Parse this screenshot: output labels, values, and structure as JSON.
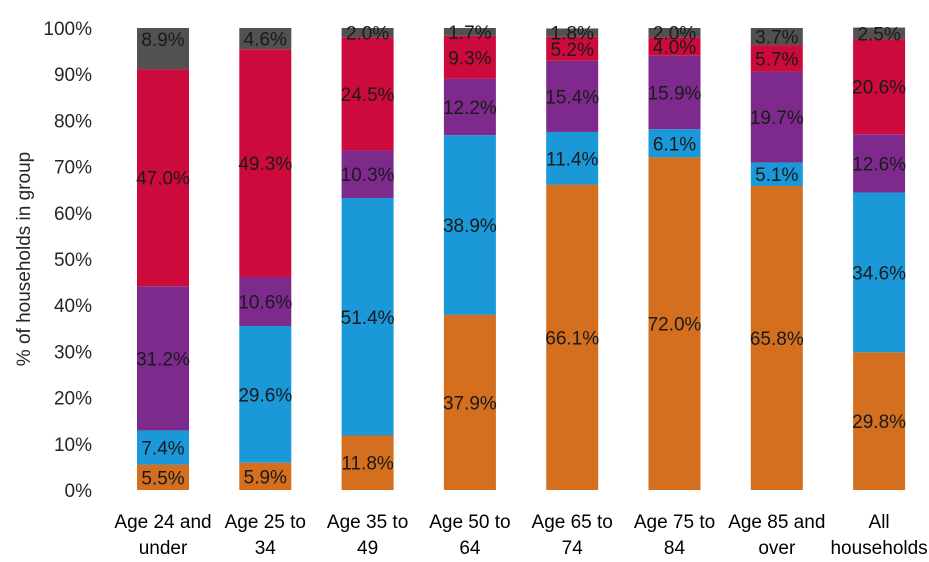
{
  "chart_data": {
    "type": "bar",
    "stacked": true,
    "ylabel": "% of households in group",
    "ylim": [
      0,
      100
    ],
    "yticks": [
      "0%",
      "10%",
      "20%",
      "30%",
      "40%",
      "50%",
      "60%",
      "70%",
      "80%",
      "90%",
      "100%"
    ],
    "categories": [
      [
        "Age 24 and",
        "under"
      ],
      [
        "Age 25 to",
        "34"
      ],
      [
        "Age 35 to",
        "49"
      ],
      [
        "Age 50 to",
        "64"
      ],
      [
        "Age 65 to",
        "74"
      ],
      [
        "Age 75 to",
        "84"
      ],
      [
        "Age 85 and",
        "over"
      ],
      [
        "All",
        "households"
      ]
    ],
    "series": [
      {
        "color": "#d36f1f",
        "values": [
          5.5,
          5.9,
          11.8,
          37.9,
          66.1,
          72.0,
          65.8,
          29.8
        ],
        "labels": [
          "5.5%",
          "5.9%",
          "11.8%",
          "37.9%",
          "66.1%",
          "72.0%",
          "65.8%",
          "29.8%"
        ]
      },
      {
        "color": "#1b98d8",
        "values": [
          7.4,
          29.6,
          51.4,
          38.9,
          11.4,
          6.1,
          5.1,
          34.6
        ],
        "labels": [
          "7.4%",
          "29.6%",
          "51.4%",
          "38.9%",
          "11.4%",
          "6.1%",
          "5.1%",
          "34.6%"
        ]
      },
      {
        "color": "#7d2a8c",
        "values": [
          31.2,
          10.6,
          10.3,
          12.2,
          15.4,
          15.9,
          19.7,
          12.6
        ],
        "labels": [
          "31.2%",
          "10.6%",
          "10.3%",
          "12.2%",
          "15.4%",
          "15.9%",
          "19.7%",
          "12.6%"
        ]
      },
      {
        "color": "#cc0a3c",
        "values": [
          47.0,
          49.3,
          24.5,
          9.3,
          5.2,
          4.0,
          5.7,
          20.6
        ],
        "labels": [
          "47.0%",
          "49.3%",
          "24.5%",
          "9.3%",
          "5.2%",
          "4.0%",
          "5.7%",
          "20.6%"
        ]
      },
      {
        "color": "#515151",
        "values": [
          8.9,
          4.6,
          2.0,
          1.7,
          1.8,
          2.0,
          3.7,
          2.5
        ],
        "labels": [
          "8.9%",
          "4.6%",
          "2.0%",
          "1.7%",
          "1.8%",
          "2.0%",
          "3.7%",
          "2.5%"
        ]
      }
    ],
    "grid": false,
    "legend": "none"
  }
}
